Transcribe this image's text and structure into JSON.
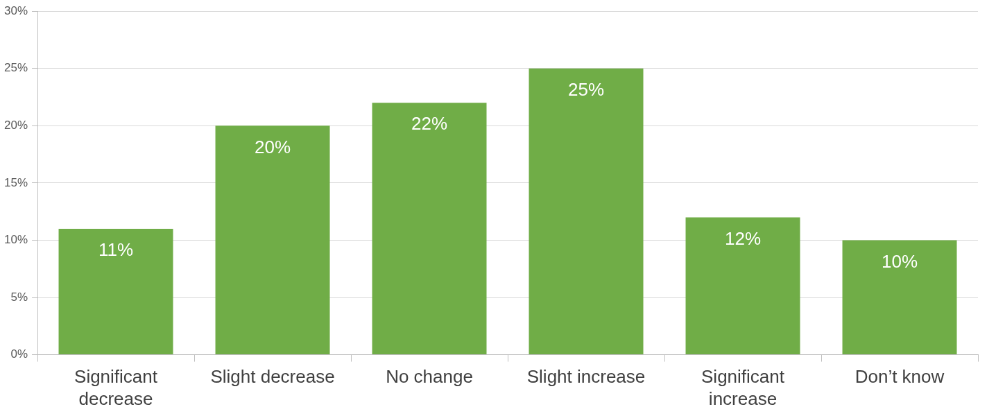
{
  "chart_data": {
    "type": "bar",
    "categories": [
      "Significant decrease",
      "Slight decrease",
      "No change",
      "Slight increase",
      "Significant increase",
      "Don’t know"
    ],
    "values": [
      11,
      20,
      22,
      25,
      12,
      10
    ],
    "value_labels": [
      "11%",
      "20%",
      "22%",
      "25%",
      "12%",
      "10%"
    ],
    "color": "#70ad47",
    "ylim": [
      0,
      30
    ],
    "yticks": [
      {
        "value": 0,
        "label": "0%"
      },
      {
        "value": 5,
        "label": "5%"
      },
      {
        "value": 10,
        "label": "10%"
      },
      {
        "value": 15,
        "label": "15%"
      },
      {
        "value": 20,
        "label": "20%"
      },
      {
        "value": 25,
        "label": "25%"
      },
      {
        "value": 30,
        "label": "30%"
      }
    ],
    "grid": "y",
    "legend": false
  }
}
